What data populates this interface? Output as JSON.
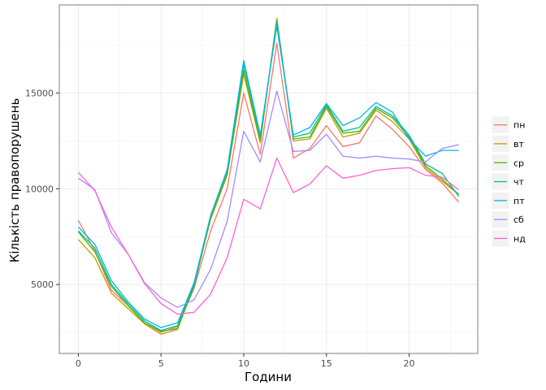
{
  "chart_data": {
    "type": "line",
    "title": "",
    "xlabel": "Години",
    "ylabel": "Кількість правопорушень",
    "xlim": [
      -1.15,
      24.15
    ],
    "ylim": [
      1400,
      19600
    ],
    "x_ticks": [
      0,
      5,
      10,
      15,
      20
    ],
    "x_tick_labels": [
      "0",
      "5",
      "10",
      "15",
      "20"
    ],
    "y_ticks": [
      5000,
      10000,
      15000
    ],
    "y_tick_labels": [
      "5000",
      "10000",
      "15000"
    ],
    "grid": true,
    "legend_position": "right",
    "x": [
      0,
      1,
      2,
      3,
      4,
      5,
      6,
      7,
      8,
      9,
      10,
      11,
      12,
      13,
      14,
      15,
      16,
      17,
      18,
      19,
      20,
      21,
      22,
      23
    ],
    "series": [
      {
        "name": "пн",
        "color": "#F8766D",
        "values": [
          8350,
          6750,
          4700,
          3900,
          3000,
          2500,
          2800,
          4800,
          7800,
          10000,
          15000,
          11800,
          17600,
          11600,
          12100,
          13300,
          12200,
          12400,
          13800,
          13100,
          12200,
          11000,
          10300,
          9300
        ]
      },
      {
        "name": "вт",
        "color": "#C49A00",
        "values": [
          7350,
          6400,
          4550,
          3750,
          2950,
          2400,
          2650,
          5000,
          8400,
          10700,
          16000,
          12400,
          18900,
          12500,
          12600,
          14200,
          12700,
          12900,
          14100,
          13500,
          12600,
          11100,
          10400,
          9700
        ]
      },
      {
        "name": "ср",
        "color": "#53B400",
        "values": [
          7750,
          6700,
          4900,
          3900,
          3000,
          2550,
          2700,
          4900,
          8500,
          10800,
          16200,
          12500,
          18800,
          12600,
          12700,
          14300,
          12900,
          13000,
          14200,
          13700,
          12700,
          11200,
          10500,
          9700
        ]
      },
      {
        "name": "чт",
        "color": "#00C094",
        "values": [
          7800,
          6900,
          5000,
          4000,
          3100,
          2600,
          2850,
          5000,
          8600,
          10900,
          16500,
          12700,
          18700,
          12700,
          12900,
          14400,
          13000,
          13200,
          14300,
          13800,
          12800,
          11300,
          10800,
          9600
        ]
      },
      {
        "name": "пт",
        "color": "#00B6EB",
        "values": [
          8000,
          7100,
          5200,
          4100,
          3200,
          2750,
          3000,
          5100,
          8600,
          11000,
          16700,
          12800,
          18500,
          12800,
          13200,
          14450,
          13300,
          13700,
          14500,
          14000,
          12600,
          11700,
          12000,
          12000
        ]
      },
      {
        "name": "сб",
        "color": "#A58AFF",
        "values": [
          10550,
          9950,
          7700,
          6600,
          5100,
          4300,
          3800,
          4200,
          5800,
          8300,
          13000,
          11400,
          15100,
          11950,
          12000,
          12850,
          11700,
          11600,
          11700,
          11600,
          11550,
          11400,
          12100,
          12300
        ]
      },
      {
        "name": "нд",
        "color": "#FB61D7",
        "values": [
          10850,
          9900,
          8000,
          6600,
          5050,
          4000,
          3450,
          3550,
          4500,
          6400,
          9450,
          8950,
          11600,
          9800,
          10250,
          11200,
          10550,
          10700,
          10950,
          11050,
          11100,
          10700,
          10600,
          9950
        ]
      }
    ]
  }
}
